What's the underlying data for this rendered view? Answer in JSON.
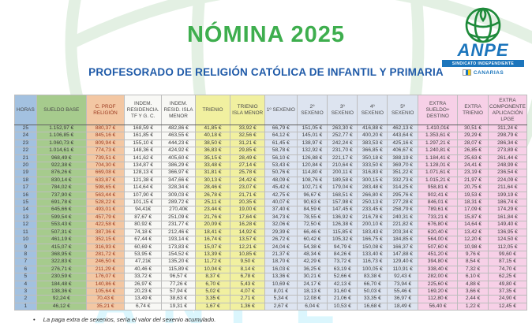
{
  "title": "NÓMINA 2025",
  "subtitle": "PROFESORADO DE RELIGIÓN CATÓLICA DE INFANTIL Y PRIMARIA",
  "logo": {
    "name": "ANPE",
    "tagline": "SINDICATO INDEPENDIENTE",
    "region": "CANARIAS",
    "globe_icon": "green-globe-icon",
    "brand_blue": "#1B75BC",
    "brand_green": "#1E8A3A"
  },
  "theme": {
    "title_green": "#3EAE4E",
    "subtitle_blue": "#1F5AA8",
    "col_blue": "#A3C1E0",
    "col_green": "#A6CB8D",
    "col_peach": "#F3C7A3",
    "col_white": "#F8F8F5",
    "col_yellow": "#F1F0A0",
    "col_gray_blue": "#DDE4F0",
    "col_pink": "#F7D0E7",
    "peach_text": "#9C3C22"
  },
  "footnote": {
    "bullet": "•",
    "text": "La paga extra de sexenios, sería el valor del sexenio acumulado."
  },
  "table": {
    "columns": [
      {
        "key": "horas",
        "label": "HORAS",
        "bg": "#A3C1E0"
      },
      {
        "key": "sueldo-base",
        "label": "SUELDO BASE",
        "bg": "#A6CB8D"
      },
      {
        "key": "c-prof-religion",
        "label": "C. PROF RELIGIÓN",
        "bg": "#F3C7A3",
        "fg": "#9C3C22"
      },
      {
        "key": "indem-residencia",
        "label": "INDEM. RESIDENCIA. TF Y G. C.",
        "bg": "#F8F8F5"
      },
      {
        "key": "indem-isla-menor",
        "label": "INDEM. RESID. ISLA MENOR",
        "bg": "#F8F8F5"
      },
      {
        "key": "trienio",
        "label": "TRIENIO",
        "bg": "#F1F0A0"
      },
      {
        "key": "trienio-isla",
        "label": "TRIENIO ISLA MENOR",
        "bg": "#F1F0A0"
      },
      {
        "key": "sexenio-1",
        "label": "1º SEXENIO",
        "bg": "#DDE4F0"
      },
      {
        "key": "sexenio-2",
        "label": "2º SEXENIO",
        "bg": "#DDE4F0"
      },
      {
        "key": "sexenio-3",
        "label": "3º SEXENIO",
        "bg": "#DDE4F0"
      },
      {
        "key": "sexenio-4",
        "label": "4º SEXENIO",
        "bg": "#DDE4F0"
      },
      {
        "key": "sexenio-5",
        "label": "5º SEXENIO",
        "bg": "#DDE4F0"
      },
      {
        "key": "extra-sueldo",
        "label": "EXTRA SUELDO+ DESTINO",
        "bg": "#F7D0E7"
      },
      {
        "key": "extra-trienio",
        "label": "EXTRA TRIENIO",
        "bg": "#F7D0E7"
      },
      {
        "key": "extra-lpge",
        "label": "EXTRA COMPONENTE APLICACIÓN LPGE",
        "bg": "#F7D0E7"
      }
    ],
    "rows": [
      [
        "25",
        "1.152,97 €",
        "880,37 €",
        "168,59 €",
        "482,86 €",
        "41,85 €",
        "33,92 €",
        "66,79 €",
        "151,05 €",
        "263,30 €",
        "416,88 €",
        "462,13 €",
        "1.410,01€",
        "30,51 €",
        "311,24 €"
      ],
      [
        "24",
        "1.106,85 €",
        "845,16 €",
        "161,85 €",
        "463,55 €",
        "40,18 €",
        "32,56 €",
        "64,12 €",
        "145,01 €",
        "252,77 €",
        "400,20 €",
        "443,64 €",
        "1.353,61 €",
        "29,29 €",
        "298,79 €"
      ],
      [
        "23",
        "1.060,73 €",
        "809,94 €",
        "155,10 €",
        "444,23 €",
        "38,50 €",
        "31,21 €",
        "61,45 €",
        "138,97 €",
        "242,24 €",
        "383,53 €",
        "425,16 €",
        "1.297,21 €",
        "28,07 €",
        "286,34 €"
      ],
      [
        "22",
        "1.014,61 €",
        "774,73 €",
        "148,36 €",
        "424,92 €",
        "36,83 €",
        "29,85 €",
        "58,78 €",
        "132,92 €",
        "231,70 €",
        "366,85 €",
        "406,67 €",
        "1.240,81 €",
        "26,85 €",
        "273,89 €"
      ],
      [
        "21",
        "968,49 €",
        "739,51 €",
        "141,62 €",
        "405,60 €",
        "35,15 €",
        "28,49 €",
        "56,10 €",
        "126,88 €",
        "221,17 €",
        "350,18 €",
        "388,19 €",
        "1.184,41 €",
        "25,63 €",
        "261,44 €"
      ],
      [
        "20",
        "922,38 €",
        "704,30 €",
        "134,87 €",
        "386,29 €",
        "33,48 €",
        "27,14 €",
        "53,43 €",
        "120,84 €",
        "210,64 €",
        "333,50 €",
        "369,70 €",
        "1.128,01 €",
        "24,41 €",
        "248,99 €"
      ],
      [
        "19",
        "876,26 €",
        "669,08 €",
        "128,13 €",
        "366,97 €",
        "31,81 €",
        "25,78 €",
        "50,76 €",
        "114,80 €",
        "200,11 €",
        "316,83 €",
        "351,22 €",
        "1.071,61 €",
        "23,19 €",
        "236,54 €"
      ],
      [
        "18",
        "830,14 €",
        "633,87 €",
        "121,38 €",
        "347,66 €",
        "30,13 €",
        "24,42 €",
        "48,09 €",
        "108,76 €",
        "189,58 €",
        "300,15 €",
        "332,73 €",
        "1.015,21 €",
        "21,97 €",
        "224,09 €"
      ],
      [
        "17",
        "784,02 €",
        "598,65 €",
        "114,64 €",
        "328,34 €",
        "28,46 €",
        "23,07 €",
        "45,42 €",
        "102,71 €",
        "179,04 €",
        "283,48 €",
        "314,25 €",
        "958,81 €",
        "20,75 €",
        "211,64 €"
      ],
      [
        "16",
        "737,90 €",
        "563,44 €",
        "107,90 €",
        "309,03 €",
        "26,78 €",
        "21,71 €",
        "42,75 €",
        "96,67 €",
        "168,51 €",
        "266,80 €",
        "295,76 €",
        "902,41 €",
        "19,53 €",
        "199,19 €"
      ],
      [
        "15",
        "691,78 €",
        "528,22 €",
        "101,15 €",
        "289,72 €",
        "25,11 €",
        "20,35 €",
        "40,07 €",
        "90,63 €",
        "157,98 €",
        "250,13 €",
        "277,28 €",
        "846,01 €",
        "18,31 €",
        "186,74 €"
      ],
      [
        "14",
        "645,66 €",
        "493,01 €",
        "94,41€",
        "270,40€",
        "23,44 €",
        "19,00 €",
        "37,40 €",
        "84,59 €",
        "147,45 €",
        "233,45 €",
        "258,79 €",
        "789,61 €",
        "17,09 €",
        "174,29 €"
      ],
      [
        "13",
        "599,54 €",
        "457,79 €",
        "87,67 €",
        "251,09 €",
        "21,76 €",
        "17,64 €",
        "34,73 €",
        "78,55 €",
        "136,92 €",
        "216,78 €",
        "240,31 €",
        "733,21 €",
        "15,87 €",
        "161,84 €"
      ],
      [
        "12",
        "553,43 €",
        "422,58 €",
        "80,92 €",
        "231,77 €",
        "20,09 €",
        "16,28 €",
        "32,06 €",
        "72,50 €",
        "126,38 €",
        "200,10 €",
        "221,82 €",
        "676,80 €",
        "14,64 €",
        "149,40 €"
      ],
      [
        "11",
        "507,31 €",
        "387,36 €",
        "74,18 €",
        "212,46 €",
        "18,41 €",
        "14,92 €",
        "29,39 €",
        "66,46 €",
        "115,85 €",
        "183,43 €",
        "203,34 €",
        "620,40 €",
        "13,42 €",
        "136,95 €"
      ],
      [
        "10",
        "461,19 €",
        "352,15 €",
        "67,44 €",
        "193,14 €",
        "16,74 €",
        "13,57 €",
        "26,72 €",
        "60,42 €",
        "105,32 €",
        "166,75 €",
        "184,85 €",
        "564,00 €",
        "12,20 €",
        "124,50 €"
      ],
      [
        "9",
        "415,07 €",
        "316,93 €",
        "60,69 €",
        "173,83 €",
        "15,07 €",
        "12,21 €",
        "24,04 €",
        "54,38 €",
        "94,79 €",
        "150,08 €",
        "166,37 €",
        "507,60 €",
        "10,98 €",
        "112,05 €"
      ],
      [
        "8",
        "368,95 €",
        "281,72 €",
        "53,95 €",
        "154,52 €",
        "13,39 €",
        "10,85 €",
        "21,37 €",
        "48,34 €",
        "84,26 €",
        "133,40 €",
        "147,88 €",
        "451,20 €",
        "9,76 €",
        "99,60 €"
      ],
      [
        "7",
        "322,83 €",
        "246,50 €",
        "47,21€",
        "135,20 €",
        "11,72 €",
        "9,50 €",
        "18,70 €",
        "42,29 €",
        "73,72 €",
        "116,73 €",
        "129,40 €",
        "394,80 €",
        "8,54 €",
        "87,15 €"
      ],
      [
        "6",
        "276,71 €",
        "211,29 €",
        "40,46 €",
        "115,89 €",
        "10,04 €",
        "8,14 €",
        "16,03 €",
        "36,25 €",
        "63,19 €",
        "100,05 €",
        "110,91 €",
        "338,40 €",
        "7,32 €",
        "74,70 €"
      ],
      [
        "5",
        "230,59 €",
        "176,07 €",
        "33,72 €",
        "96,57 €",
        "8,37 €",
        "6,78 €",
        "13,36 €",
        "30,21 €",
        "52,66 €",
        "83,38 €",
        "92,43 €",
        "282,00 €",
        "6,10 €",
        "62,25 €"
      ],
      [
        "4",
        "184,48 €",
        "140,86 €",
        "26,97 €",
        "77,26 €",
        "6,70 €",
        "5,43 €",
        "10,69 €",
        "24,17 €",
        "42,13 €",
        "66,70 €",
        "73,94 €",
        "225,60 €",
        "4,88 €",
        "49,80 €"
      ],
      [
        "3",
        "138,36 €",
        "105,64 €",
        "20,23 €",
        "57,94 €",
        "5,02 €",
        "4,07 €",
        "8,01 €",
        "18,13 €",
        "31,60 €",
        "50,03 €",
        "55,46 €",
        "169,20 €",
        "3,66 €",
        "37,35 €"
      ],
      [
        "2",
        "92,24 €",
        "70,43 €",
        "13,49 €",
        "38,63 €",
        "3,35 €",
        "2,71 €",
        "5,34 €",
        "12,08 €",
        "21,06 €",
        "33,35 €",
        "36,97 €",
        "112,80 €",
        "2,44 €",
        "24,90 €"
      ],
      [
        "1",
        "46,12 €",
        "35,21 €",
        "6,74 €",
        "19,31 €",
        "1,67 €",
        "1,36 €",
        "2,67 €",
        "6,04 €",
        "10,53 €",
        "16,68 €",
        "18,49 €",
        "56,40 €",
        "1,22 €",
        "12,45 €"
      ]
    ]
  }
}
